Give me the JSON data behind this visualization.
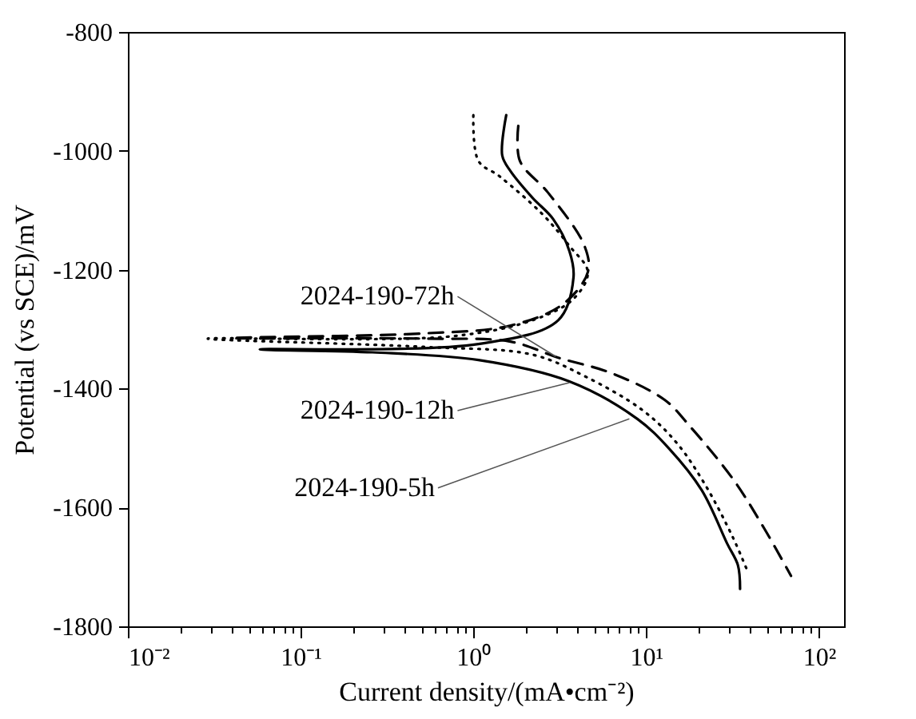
{
  "chart_data": {
    "type": "line",
    "xlabel": "Current density/(mA•cm⁻²)",
    "ylabel": "Potential (vs SCE)/mV",
    "log": "x",
    "grid": false,
    "xlim": [
      0.01,
      140
    ],
    "ylim": [
      -1800,
      -800
    ],
    "xticks": [
      {
        "value": 0.01,
        "label": "10⁻²"
      },
      {
        "value": 0.02,
        "label": null
      },
      {
        "value": 0.03,
        "label": null
      },
      {
        "value": 0.04,
        "label": null
      },
      {
        "value": 0.05,
        "label": null
      },
      {
        "value": 0.06,
        "label": null
      },
      {
        "value": 0.07,
        "label": null
      },
      {
        "value": 0.08,
        "label": null
      },
      {
        "value": 0.09,
        "label": null
      },
      {
        "value": 0.1,
        "label": "10⁻¹"
      },
      {
        "value": 0.2,
        "label": null
      },
      {
        "value": 0.3,
        "label": null
      },
      {
        "value": 0.4,
        "label": null
      },
      {
        "value": 0.5,
        "label": null
      },
      {
        "value": 0.6,
        "label": null
      },
      {
        "value": 0.7,
        "label": null
      },
      {
        "value": 0.8,
        "label": null
      },
      {
        "value": 0.9,
        "label": null
      },
      {
        "value": 1,
        "label": "10⁰"
      },
      {
        "value": 2,
        "label": null
      },
      {
        "value": 3,
        "label": null
      },
      {
        "value": 4,
        "label": null
      },
      {
        "value": 5,
        "label": null
      },
      {
        "value": 6,
        "label": null
      },
      {
        "value": 7,
        "label": null
      },
      {
        "value": 8,
        "label": null
      },
      {
        "value": 9,
        "label": null
      },
      {
        "value": 10,
        "label": "10¹"
      },
      {
        "value": 20,
        "label": null
      },
      {
        "value": 30,
        "label": null
      },
      {
        "value": 40,
        "label": null
      },
      {
        "value": 50,
        "label": null
      },
      {
        "value": 60,
        "label": null
      },
      {
        "value": 70,
        "label": null
      },
      {
        "value": 80,
        "label": null
      },
      {
        "value": 90,
        "label": null
      },
      {
        "value": 100,
        "label": "10²"
      }
    ],
    "yticks": [
      -1800,
      -1600,
      -1400,
      -1200,
      -1000,
      -800
    ],
    "series": [
      {
        "color": "#000000",
        "line_style": "dashed",
        "x": [
          1.82,
          1.86,
          2.7,
          4.4,
          4.6,
          3.3,
          1.64,
          0.53,
          0.04,
          0.53,
          1.64,
          3.1,
          6.3,
          12.8,
          18,
          32,
          48,
          69
        ],
        "values": [
          -958,
          -1017,
          -1070,
          -1160,
          -1204,
          -1258,
          -1294,
          -1307,
          -1315,
          -1316,
          -1321,
          -1348,
          -1374,
          -1419,
          -1464,
          -1553,
          -1634,
          -1715
        ]
      },
      {
        "color": "#000000",
        "line_style": "dotted",
        "x": [
          1.0,
          1.07,
          1.42,
          2.5,
          3.6,
          4.6,
          3.8,
          2.2,
          0.75,
          0.029,
          0.53,
          2.2,
          4.4,
          9.6,
          15,
          22,
          32,
          39
        ],
        "values": [
          -940,
          -1017,
          -1043,
          -1106,
          -1160,
          -1204,
          -1249,
          -1285,
          -1312,
          -1316,
          -1330,
          -1343,
          -1379,
          -1437,
          -1491,
          -1562,
          -1652,
          -1710
        ]
      },
      {
        "color": "#000000",
        "line_style": "solid",
        "x": [
          1.55,
          1.47,
          1.64,
          2.2,
          2.9,
          3.6,
          3.8,
          3.1,
          1.07,
          0.058,
          0.26,
          1.07,
          3.6,
          8.9,
          13.5,
          21,
          29.5,
          34,
          35
        ],
        "values": [
          -940,
          -1008,
          -1034,
          -1079,
          -1115,
          -1169,
          -1213,
          -1285,
          -1325,
          -1334,
          -1339,
          -1352,
          -1388,
          -1451,
          -1500,
          -1571,
          -1661,
          -1697,
          -1737
        ]
      }
    ],
    "annotations": [
      {
        "text": "2024-190-72h",
        "x": 3.0,
        "y": -1346
      },
      {
        "text": "2024-190-12h",
        "x": 3.6,
        "y": -1390
      },
      {
        "text": "2024-190-5h",
        "x": 8.0,
        "y": -1451
      }
    ]
  }
}
